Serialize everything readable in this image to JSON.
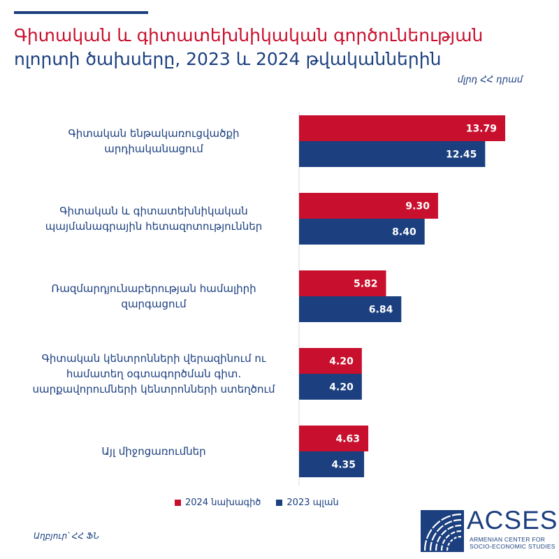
{
  "header": {
    "title_highlight": "Գիտական և գիտատեխնիկական գործունեության",
    "title_rest": " ոլորտի ծախսերը, 2023 և 2024 թվականներին",
    "unit": "մլրդ ՀՀ դրամ"
  },
  "chart_data": {
    "type": "bar",
    "orientation": "horizontal",
    "title": "Գիտական և գիտատեխնիկական գործունեության ոլորտի ծախսերը, 2023 և 2024 թվականներին",
    "ylabel": "մլրդ ՀՀ դրամ",
    "categories": [
      [
        "Գիտական ենթակառուցվածքի",
        "արդիականացում"
      ],
      [
        "Գիտական և գիտատեխնիկական",
        "պայմանագրային հետազոտություններ"
      ],
      [
        "Ռազմարդյունաբերության համալիրի",
        "զարգացում"
      ],
      [
        "Գիտական կենտրոնների վերազինում ու",
        "համատեղ օգտագործման գիտ.",
        "սարքավորումների կենտրոնների ստեղծում"
      ],
      [
        "Այլ միջոցառումներ"
      ]
    ],
    "series": [
      {
        "name": "2024 նախագիծ",
        "color": "#c8102e",
        "values": [
          13.79,
          9.3,
          5.82,
          4.2,
          4.63
        ],
        "labels": [
          "13.79",
          "9.30",
          "5.82",
          "4.20",
          "4.63"
        ]
      },
      {
        "name": "2023 պլան",
        "color": "#1b3f7f",
        "values": [
          12.45,
          8.4,
          6.84,
          4.2,
          4.35
        ],
        "labels": [
          "12.45",
          "8.40",
          "6.84",
          "4.20",
          "4.35"
        ]
      }
    ],
    "xlim": [
      0,
      13.79
    ],
    "legend_position": "bottom",
    "grid": false
  },
  "legend": {
    "items": [
      {
        "label": "2024 նախագիծ",
        "color": "#c8102e"
      },
      {
        "label": "2023 պլան",
        "color": "#1b3f7f"
      }
    ]
  },
  "footer": {
    "source": "Աղբյուր՝ ՀՀ ՖՆ",
    "logo_name": "ACSES",
    "logo_sub_line1": "ARMENIAN CENTER FOR",
    "logo_sub_line2": "SOCIO-ECONOMIC STUDIES"
  }
}
